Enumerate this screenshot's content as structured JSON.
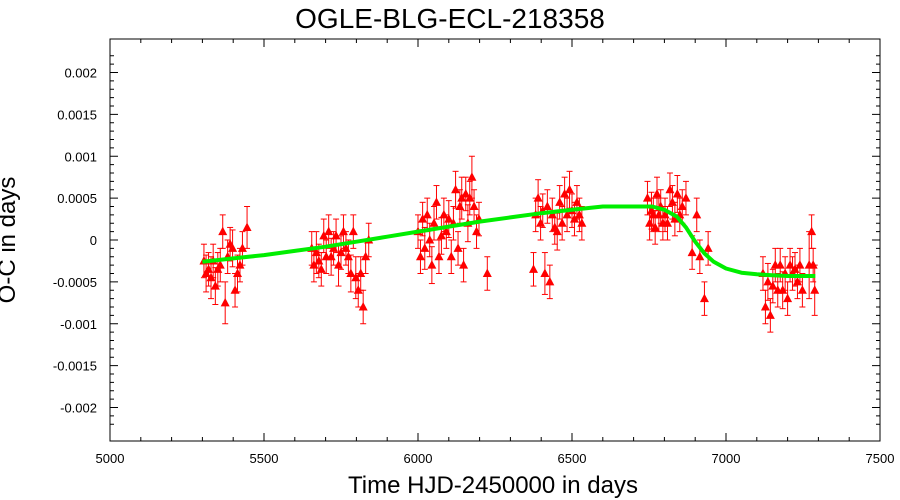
{
  "chart_data": {
    "type": "scatter",
    "title": "OGLE-BLG-ECL-218358",
    "xlabel": "Time HJD-2450000 in days",
    "ylabel": "O-C in days",
    "xlim": [
      5000,
      7500
    ],
    "ylim": [
      -0.0024,
      0.0024
    ],
    "xticks": [
      5000,
      5500,
      6000,
      6500,
      7000,
      7500
    ],
    "xtick_labels": [
      "5000",
      "5500",
      "6000",
      "6500",
      "7000",
      "7500"
    ],
    "yticks": [
      0.002,
      0.0015,
      0.001,
      0.0005,
      0,
      -0.0005,
      -0.001,
      -0.0015,
      -0.002
    ],
    "ytick_labels": [
      "0.002",
      "0.0015",
      "0.001",
      "0.0005",
      "0",
      "-0.0005",
      "-0.001",
      "-0.0015",
      "-0.002"
    ],
    "grid": false,
    "colors": {
      "points": "#ff0000",
      "fit": "#00ee00",
      "frame": "#000000"
    },
    "series": [
      {
        "kind": "points_with_errorbars",
        "marker": "triangle",
        "points": [
          {
            "x": 5305,
            "y": -0.00025,
            "err": 0.0002
          },
          {
            "x": 5312,
            "y": -0.0004,
            "err": 0.00022
          },
          {
            "x": 5320,
            "y": -0.00035,
            "err": 0.0002
          },
          {
            "x": 5328,
            "y": -0.00045,
            "err": 0.00025
          },
          {
            "x": 5335,
            "y": -0.00025,
            "err": 0.0002
          },
          {
            "x": 5342,
            "y": -0.00055,
            "err": 0.00022
          },
          {
            "x": 5350,
            "y": -0.00035,
            "err": 0.0002
          },
          {
            "x": 5358,
            "y": -0.0003,
            "err": 0.0002
          },
          {
            "x": 5366,
            "y": 0.0001,
            "err": 0.0002
          },
          {
            "x": 5374,
            "y": -0.00075,
            "err": 0.00025
          },
          {
            "x": 5382,
            "y": -0.0002,
            "err": 0.0002
          },
          {
            "x": 5390,
            "y": -5e-05,
            "err": 0.0002
          },
          {
            "x": 5398,
            "y": -0.0001,
            "err": 0.00022
          },
          {
            "x": 5406,
            "y": -0.0006,
            "err": 0.0002
          },
          {
            "x": 5414,
            "y": -0.0004,
            "err": 0.00022
          },
          {
            "x": 5422,
            "y": -0.0003,
            "err": 0.0002
          },
          {
            "x": 5430,
            "y": -0.0001,
            "err": 0.0002
          },
          {
            "x": 5445,
            "y": 0.00015,
            "err": 0.00025
          },
          {
            "x": 5655,
            "y": -0.0001,
            "err": 0.0002
          },
          {
            "x": 5662,
            "y": -0.0003,
            "err": 0.0002
          },
          {
            "x": 5670,
            "y": -0.00015,
            "err": 0.00025
          },
          {
            "x": 5678,
            "y": -0.00025,
            "err": 0.0002
          },
          {
            "x": 5686,
            "y": -0.00035,
            "err": 0.0002
          },
          {
            "x": 5694,
            "y": 5e-05,
            "err": 0.0002
          },
          {
            "x": 5702,
            "y": -0.0002,
            "err": 0.0002
          },
          {
            "x": 5710,
            "y": 0.0001,
            "err": 0.0002
          },
          {
            "x": 5718,
            "y": -0.0002,
            "err": 0.00022
          },
          {
            "x": 5726,
            "y": -0.0001,
            "err": 0.0002
          },
          {
            "x": 5734,
            "y": 5e-05,
            "err": 0.0002
          },
          {
            "x": 5742,
            "y": -0.0003,
            "err": 0.00025
          },
          {
            "x": 5750,
            "y": -0.00015,
            "err": 0.0002
          },
          {
            "x": 5758,
            "y": 0.0001,
            "err": 0.0002
          },
          {
            "x": 5766,
            "y": -0.0001,
            "err": 0.0002
          },
          {
            "x": 5774,
            "y": -0.0002,
            "err": 0.0002
          },
          {
            "x": 5782,
            "y": -0.0004,
            "err": 0.00022
          },
          {
            "x": 5790,
            "y": 0.0001,
            "err": 0.0002
          },
          {
            "x": 5798,
            "y": -0.00045,
            "err": 0.00025
          },
          {
            "x": 5806,
            "y": -0.0006,
            "err": 0.0002
          },
          {
            "x": 5814,
            "y": -0.0004,
            "err": 0.0002
          },
          {
            "x": 5822,
            "y": -0.0008,
            "err": 0.0002
          },
          {
            "x": 5830,
            "y": -0.0002,
            "err": 0.0002
          },
          {
            "x": 5840,
            "y": 0.0,
            "err": 0.0002
          },
          {
            "x": 6000,
            "y": 0.0001,
            "err": 0.0002
          },
          {
            "x": 6008,
            "y": -0.0002,
            "err": 0.0002
          },
          {
            "x": 6015,
            "y": 0.00025,
            "err": 0.0002
          },
          {
            "x": 6022,
            "y": -0.0001,
            "err": 0.00025
          },
          {
            "x": 6030,
            "y": 0.0003,
            "err": 0.0002
          },
          {
            "x": 6038,
            "y": 0.0,
            "err": 0.0002
          },
          {
            "x": 6045,
            "y": -0.0003,
            "err": 0.00022
          },
          {
            "x": 6052,
            "y": 0.0002,
            "err": 0.0002
          },
          {
            "x": 6060,
            "y": 0.00045,
            "err": 0.0002
          },
          {
            "x": 6068,
            "y": -0.0002,
            "err": 0.0002
          },
          {
            "x": 6076,
            "y": 5e-05,
            "err": 0.00022
          },
          {
            "x": 6084,
            "y": 0.0003,
            "err": 0.0002
          },
          {
            "x": 6092,
            "y": 0.0001,
            "err": 0.0002
          },
          {
            "x": 6100,
            "y": 0.00025,
            "err": 0.00022
          },
          {
            "x": 6108,
            "y": -0.0002,
            "err": 0.0002
          },
          {
            "x": 6115,
            "y": 0.0002,
            "err": 0.0002
          },
          {
            "x": 6122,
            "y": 0.0006,
            "err": 0.00022
          },
          {
            "x": 6130,
            "y": -0.0001,
            "err": 0.0002
          },
          {
            "x": 6136,
            "y": 0.0004,
            "err": 0.0002
          },
          {
            "x": 6142,
            "y": 0.0005,
            "err": 0.00025
          },
          {
            "x": 6148,
            "y": -0.0003,
            "err": 0.0002
          },
          {
            "x": 6155,
            "y": 0.00055,
            "err": 0.0002
          },
          {
            "x": 6162,
            "y": 0.0002,
            "err": 0.00022
          },
          {
            "x": 6168,
            "y": 0.0005,
            "err": 0.0002
          },
          {
            "x": 6175,
            "y": 0.00075,
            "err": 0.00025
          },
          {
            "x": 6182,
            "y": 0.0004,
            "err": 0.0002
          },
          {
            "x": 6190,
            "y": 0.0001,
            "err": 0.0002
          },
          {
            "x": 6198,
            "y": 0.00025,
            "err": 0.0002
          },
          {
            "x": 6225,
            "y": -0.0004,
            "err": 0.0002
          },
          {
            "x": 6375,
            "y": -0.00035,
            "err": 0.0002
          },
          {
            "x": 6382,
            "y": 0.0003,
            "err": 0.0002
          },
          {
            "x": 6390,
            "y": 0.0005,
            "err": 0.00022
          },
          {
            "x": 6398,
            "y": 0.0002,
            "err": 0.0002
          },
          {
            "x": 6405,
            "y": 0.00035,
            "err": 0.0002
          },
          {
            "x": 6412,
            "y": -0.0004,
            "err": 0.00025
          },
          {
            "x": 6420,
            "y": 0.0004,
            "err": 0.0002
          },
          {
            "x": 6428,
            "y": -0.0005,
            "err": 0.0002
          },
          {
            "x": 6436,
            "y": 0.0003,
            "err": 0.0002
          },
          {
            "x": 6444,
            "y": 0.00015,
            "err": 0.0002
          },
          {
            "x": 6452,
            "y": 0.0001,
            "err": 0.00022
          },
          {
            "x": 6460,
            "y": 0.00045,
            "err": 0.0002
          },
          {
            "x": 6468,
            "y": 0.0002,
            "err": 0.0002
          },
          {
            "x": 6476,
            "y": 0.00055,
            "err": 0.0002
          },
          {
            "x": 6484,
            "y": 0.0003,
            "err": 0.0002
          },
          {
            "x": 6492,
            "y": 0.0006,
            "err": 0.00022
          },
          {
            "x": 6500,
            "y": 0.00035,
            "err": 0.0002
          },
          {
            "x": 6508,
            "y": 0.00025,
            "err": 0.0002
          },
          {
            "x": 6516,
            "y": 0.00045,
            "err": 0.0002
          },
          {
            "x": 6524,
            "y": 0.0003,
            "err": 0.0002
          },
          {
            "x": 6532,
            "y": 0.0002,
            "err": 0.0002
          },
          {
            "x": 6745,
            "y": 0.0005,
            "err": 0.0002
          },
          {
            "x": 6752,
            "y": 0.0002,
            "err": 0.0002
          },
          {
            "x": 6758,
            "y": 0.00035,
            "err": 0.00022
          },
          {
            "x": 6764,
            "y": 0.0003,
            "err": 0.0002
          },
          {
            "x": 6770,
            "y": 0.00015,
            "err": 0.0002
          },
          {
            "x": 6776,
            "y": 0.00055,
            "err": 0.0002
          },
          {
            "x": 6782,
            "y": 0.0003,
            "err": 0.0002
          },
          {
            "x": 6788,
            "y": 0.0004,
            "err": 0.0002
          },
          {
            "x": 6795,
            "y": 0.0002,
            "err": 0.0002
          },
          {
            "x": 6802,
            "y": 0.0003,
            "err": 0.0002
          },
          {
            "x": 6810,
            "y": 0.0002,
            "err": 0.0002
          },
          {
            "x": 6818,
            "y": 0.0006,
            "err": 0.0002
          },
          {
            "x": 6826,
            "y": 0.00045,
            "err": 0.0002
          },
          {
            "x": 6834,
            "y": 0.00025,
            "err": 0.0002
          },
          {
            "x": 6842,
            "y": 0.00055,
            "err": 0.00022
          },
          {
            "x": 6850,
            "y": 0.0003,
            "err": 0.0002
          },
          {
            "x": 6858,
            "y": 0.0004,
            "err": 0.0002
          },
          {
            "x": 6870,
            "y": 0.0005,
            "err": 0.0002
          },
          {
            "x": 6890,
            "y": -0.00015,
            "err": 0.0002
          },
          {
            "x": 6905,
            "y": 0.0003,
            "err": 0.0002
          },
          {
            "x": 6915,
            "y": -0.0002,
            "err": 0.0002
          },
          {
            "x": 6930,
            "y": -0.0007,
            "err": 0.0002
          },
          {
            "x": 6942,
            "y": -0.0001,
            "err": 0.0002
          },
          {
            "x": 7120,
            "y": -0.0004,
            "err": 0.0002
          },
          {
            "x": 7128,
            "y": -0.0008,
            "err": 0.0002
          },
          {
            "x": 7136,
            "y": -0.0005,
            "err": 0.00022
          },
          {
            "x": 7144,
            "y": -0.0009,
            "err": 0.0002
          },
          {
            "x": 7152,
            "y": -0.00055,
            "err": 0.0002
          },
          {
            "x": 7160,
            "y": -0.0003,
            "err": 0.0002
          },
          {
            "x": 7168,
            "y": -0.0006,
            "err": 0.0002
          },
          {
            "x": 7176,
            "y": -0.0003,
            "err": 0.0002
          },
          {
            "x": 7184,
            "y": -0.0006,
            "err": 0.00022
          },
          {
            "x": 7192,
            "y": -0.0004,
            "err": 0.0002
          },
          {
            "x": 7200,
            "y": -0.0007,
            "err": 0.0002
          },
          {
            "x": 7208,
            "y": -0.0003,
            "err": 0.0002
          },
          {
            "x": 7216,
            "y": -0.0004,
            "err": 0.0002
          },
          {
            "x": 7224,
            "y": -0.00035,
            "err": 0.0002
          },
          {
            "x": 7232,
            "y": -0.0005,
            "err": 0.0002
          },
          {
            "x": 7240,
            "y": -0.0003,
            "err": 0.0002
          },
          {
            "x": 7248,
            "y": -0.0006,
            "err": 0.0002
          },
          {
            "x": 7270,
            "y": -0.0003,
            "err": 0.0004
          },
          {
            "x": 7278,
            "y": 0.0001,
            "err": 0.0002
          },
          {
            "x": 7283,
            "y": -0.0003,
            "err": 0.0002
          },
          {
            "x": 7288,
            "y": -0.0006,
            "err": 0.0003
          }
        ]
      },
      {
        "kind": "fit_line",
        "x": [
          5300,
          5400,
          5500,
          5600,
          5700,
          5800,
          5900,
          6000,
          6100,
          6200,
          6300,
          6400,
          6500,
          6600,
          6700,
          6760,
          6800,
          6840,
          6870,
          6900,
          6930,
          6960,
          7000,
          7050,
          7100,
          7150,
          7200,
          7250,
          7290
        ],
        "y": [
          -0.00026,
          -0.00022,
          -0.00018,
          -0.00013,
          -8e-05,
          -2e-05,
          4e-05,
          0.0001,
          0.00016,
          0.00022,
          0.00027,
          0.00032,
          0.00036,
          0.0004,
          0.0004,
          0.0004,
          0.00036,
          0.00028,
          0.00015,
          -2e-05,
          -0.00016,
          -0.00026,
          -0.00034,
          -0.00039,
          -0.00041,
          -0.00042,
          -0.00043,
          -0.00043,
          -0.00043
        ]
      }
    ]
  }
}
